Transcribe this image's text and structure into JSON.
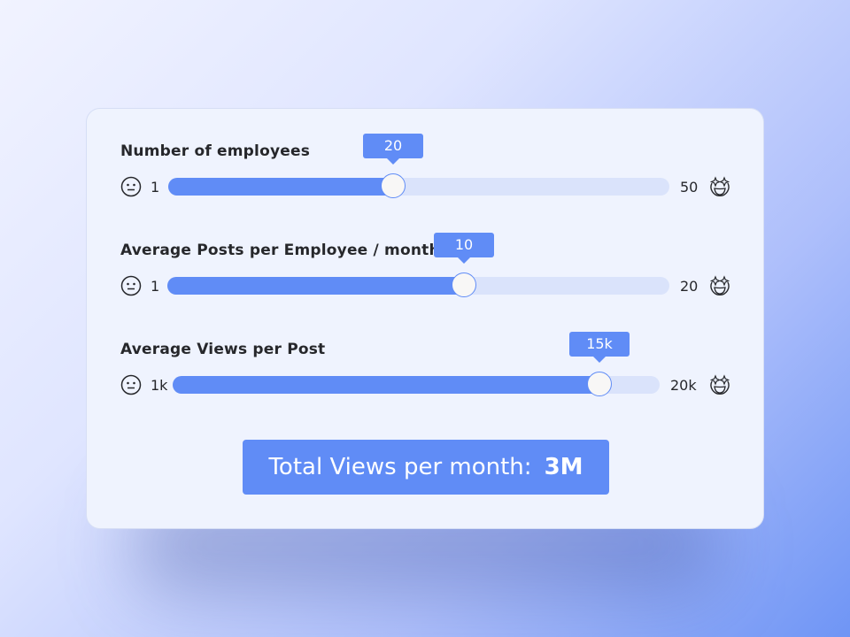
{
  "sliders": [
    {
      "label": "Number of employees",
      "min": "1",
      "max": "50",
      "value": "20",
      "min_icon": "neutral-face-icon",
      "max_icon": "star-struck-face-icon"
    },
    {
      "label": "Average Posts per Employee / month",
      "min": "1",
      "max": "20",
      "value": "10",
      "min_icon": "neutral-face-icon",
      "max_icon": "star-struck-face-icon"
    },
    {
      "label": "Average Views per Post",
      "min": "1k",
      "max": "20k",
      "value": "15k",
      "min_icon": "neutral-face-icon",
      "max_icon": "star-struck-face-icon"
    }
  ],
  "total": {
    "label": "Total Views per month:",
    "value": "3M"
  },
  "colors": {
    "accent": "#608cf6",
    "track": "#dae3fb",
    "card": "#eff3fe"
  }
}
